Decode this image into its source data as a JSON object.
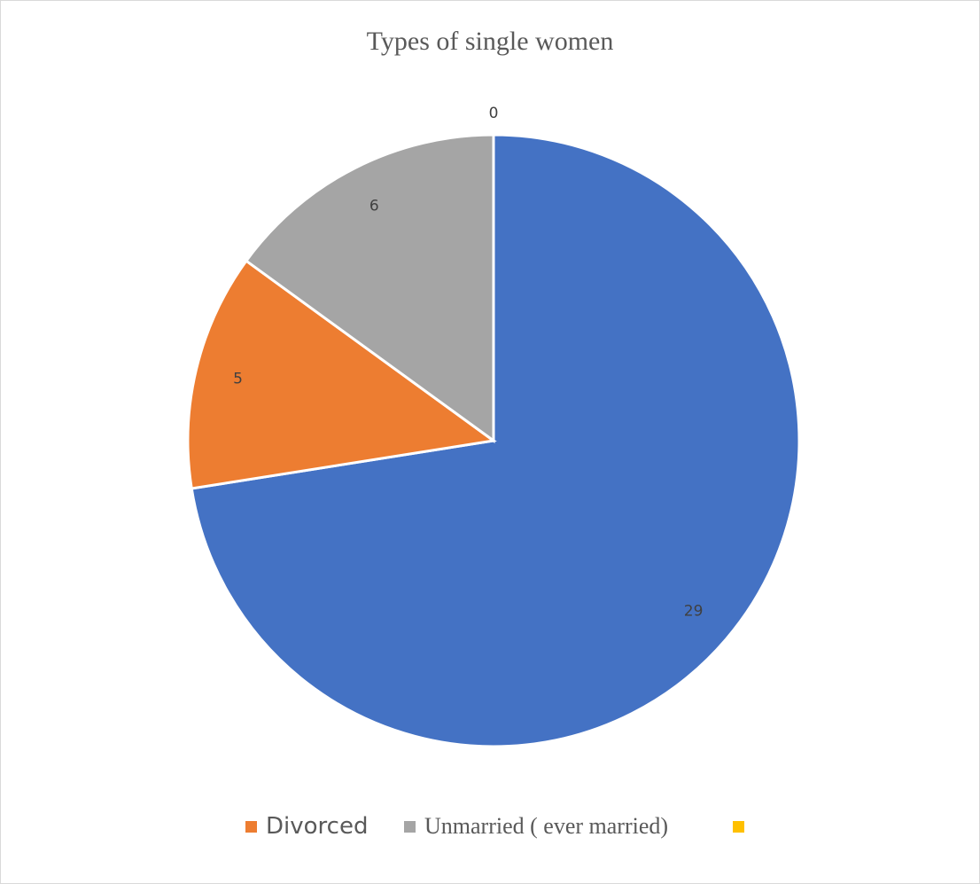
{
  "chart_data": {
    "type": "pie",
    "title": "Types of single women",
    "series": [
      {
        "name": "",
        "value": 29,
        "color": "#4472c4"
      },
      {
        "name": "Divorced",
        "value": 5,
        "color": "#ed7d31"
      },
      {
        "name": "Unmarried ( ever married)",
        "value": 6,
        "color": "#a5a5a5"
      },
      {
        "name": "",
        "value": 0,
        "color": "#ffc000"
      }
    ],
    "data_labels": [
      "29",
      "5",
      "6",
      "0"
    ],
    "start_angle": "12 o'clock",
    "direction": "clockwise",
    "legend_position": "bottom"
  }
}
